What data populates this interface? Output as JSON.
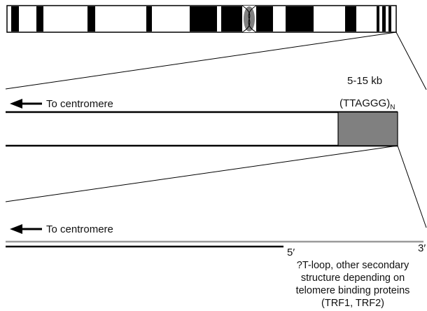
{
  "labels": {
    "size_label": "5-15 kb",
    "repeat_label": "(TTAGGG)",
    "repeat_subscript": "N",
    "to_centromere_top": "To centromere",
    "to_centromere_bottom": "To centromere",
    "five_prime": "5′",
    "three_prime": "3′"
  },
  "caption_lines": [
    "?T-loop, other secondary",
    "structure depending on",
    "telomere binding proteins",
    "(TRF1, TRF2)"
  ],
  "colors": {
    "band": "#000000",
    "centromere": "#7f7f7f",
    "repeat_block": "#808080",
    "overhang_strand": "#9a9a9a",
    "line": "#000000"
  }
}
